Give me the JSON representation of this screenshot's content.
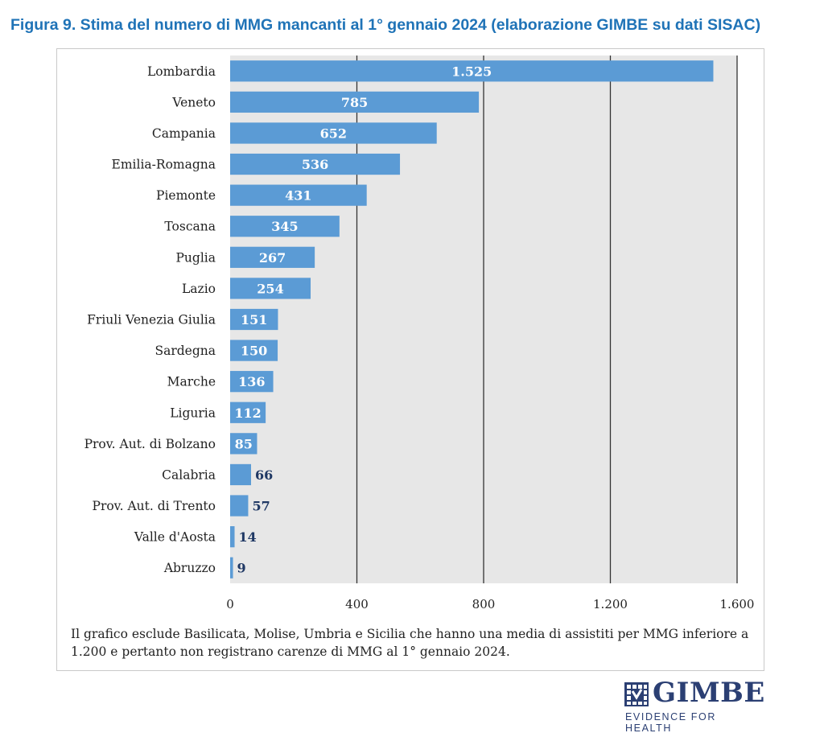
{
  "figure": {
    "title": "Figura 9. Stima del numero di MMG mancanti al 1° gennaio 2024 (elaborazione GIMBE su dati SISAC)",
    "footnote": "Il grafico esclude Basilicata, Molise, Umbria e Sicilia che hanno una media di assistiti per MMG inferiore a 1.200 e pertanto non registrano carenze di MMG al 1° gennaio 2024."
  },
  "logo": {
    "name": "GIMBE",
    "tagline": "EVIDENCE FOR HEALTH"
  },
  "chart_data": {
    "type": "bar",
    "orientation": "horizontal",
    "categories": [
      "Lombardia",
      "Veneto",
      "Campania",
      "Emilia-Romagna",
      "Piemonte",
      "Toscana",
      "Puglia",
      "Lazio",
      "Friuli Venezia Giulia",
      "Sardegna",
      "Marche",
      "Liguria",
      "Prov. Aut. di Bolzano",
      "Calabria",
      "Prov. Aut. di Trento",
      "Valle d'Aosta",
      "Abruzzo"
    ],
    "values": [
      1525,
      785,
      652,
      536,
      431,
      345,
      267,
      254,
      151,
      150,
      136,
      112,
      85,
      66,
      57,
      14,
      9
    ],
    "value_labels": [
      "1.525",
      "785",
      "652",
      "536",
      "431",
      "345",
      "267",
      "254",
      "151",
      "150",
      "136",
      "112",
      "85",
      "66",
      "57",
      "14",
      "9"
    ],
    "xlim": [
      0,
      1600
    ],
    "x_ticks": [
      0,
      400,
      800,
      1200,
      1600
    ],
    "x_tick_labels": [
      "0",
      "400",
      "800",
      "1.200",
      "1.600"
    ],
    "grid": true,
    "colors": {
      "bar": "#5b9bd5",
      "plot_background": "#e7e7e7",
      "gridline": "#333333",
      "label_inside": "#ffffff",
      "label_outside": "#1f3864"
    }
  }
}
